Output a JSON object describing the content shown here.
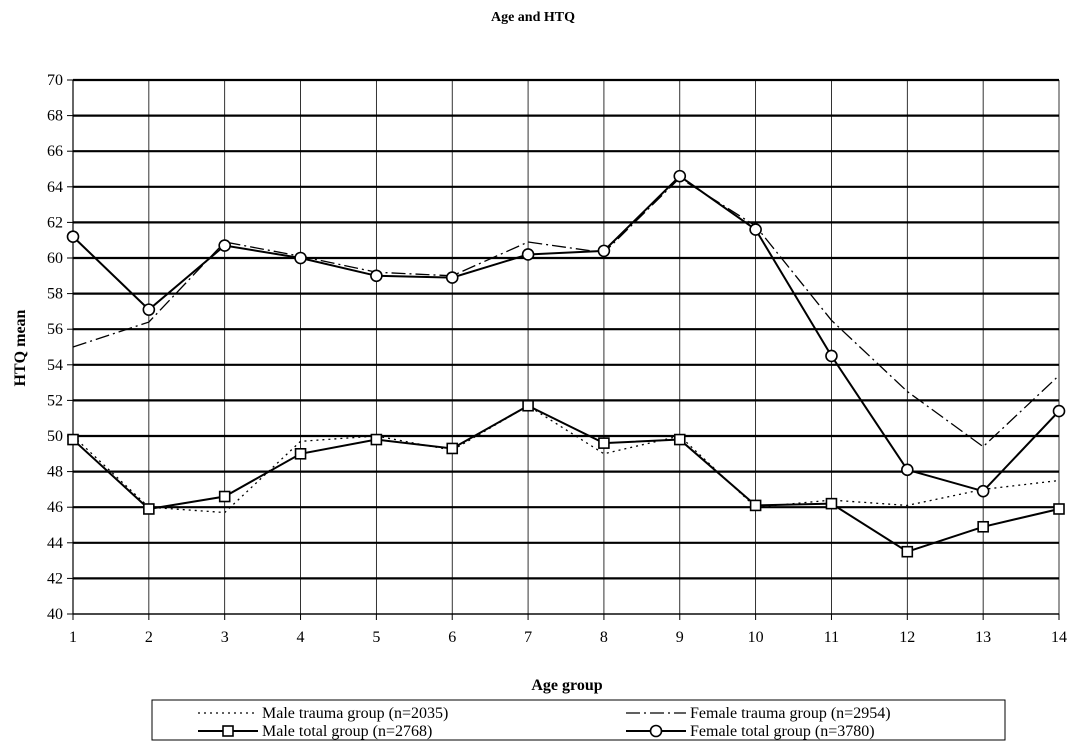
{
  "chart_data": {
    "type": "line",
    "title": "Age and HTQ",
    "xlabel": "Age group",
    "ylabel": "HTQ mean",
    "x": [
      1,
      2,
      3,
      4,
      5,
      6,
      7,
      8,
      9,
      10,
      11,
      12,
      13,
      14
    ],
    "ylim": [
      40,
      70
    ],
    "yticks": [
      40,
      42,
      44,
      46,
      48,
      50,
      52,
      54,
      56,
      58,
      60,
      62,
      64,
      66,
      68,
      70
    ],
    "grid": true,
    "legend_position": "bottom",
    "series": [
      {
        "name": "Male trauma group (n=2035)",
        "style": "dotted",
        "marker": "none",
        "values": [
          50.0,
          46.0,
          45.7,
          49.7,
          50.0,
          49.2,
          51.7,
          49.0,
          50.0,
          46.0,
          46.4,
          46.1,
          47.0,
          47.5
        ]
      },
      {
        "name": "Female trauma group (n=2954)",
        "style": "dashdot",
        "marker": "none",
        "values": [
          55.0,
          56.4,
          60.9,
          60.1,
          59.2,
          59.0,
          60.9,
          60.3,
          64.5,
          61.8,
          56.5,
          52.5,
          49.4,
          53.4
        ]
      },
      {
        "name": "Male total group (n=2768)",
        "style": "solid",
        "marker": "square",
        "values": [
          49.8,
          45.9,
          46.6,
          49.0,
          49.8,
          49.3,
          51.7,
          49.6,
          49.8,
          46.1,
          46.2,
          43.5,
          44.9,
          45.9
        ]
      },
      {
        "name": "Female total group (n=3780)",
        "style": "solid",
        "marker": "circle",
        "values": [
          61.2,
          57.1,
          60.7,
          60.0,
          59.0,
          58.9,
          60.2,
          60.4,
          64.6,
          61.6,
          54.5,
          48.1,
          46.9,
          51.4
        ]
      }
    ]
  }
}
